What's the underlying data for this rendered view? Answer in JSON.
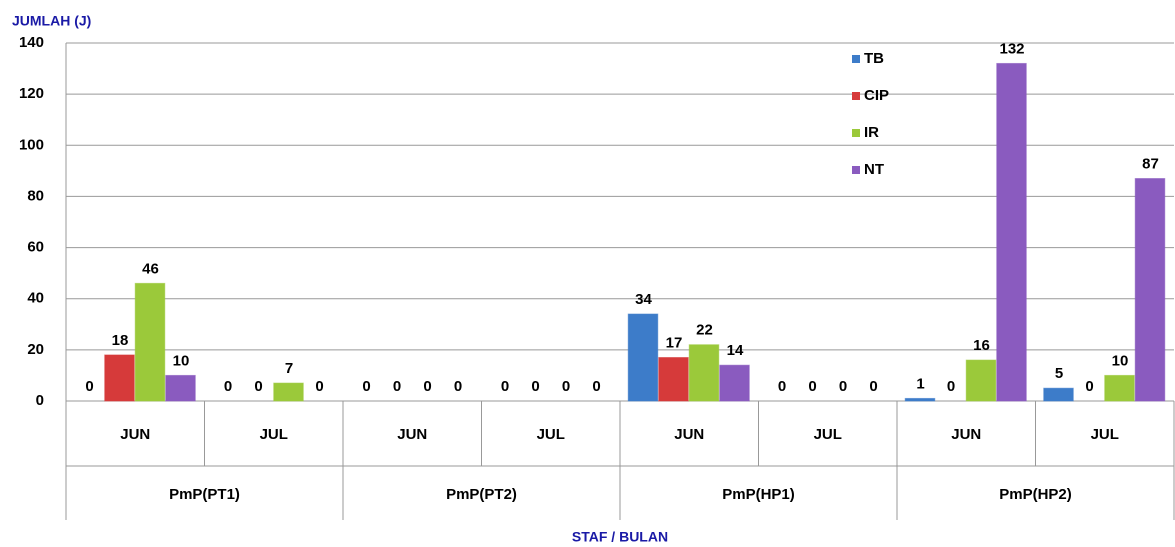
{
  "chart_data": {
    "type": "bar",
    "y_label": "JUMLAH (J)",
    "x_label": "STAF / BULAN",
    "categories": [
      "JUN",
      "JUL",
      "JUN",
      "JUL",
      "JUN",
      "JUL",
      "JUN",
      "JUL"
    ],
    "groups": [
      "PmP(PT1)",
      "PmP(PT2)",
      "PmP(HP1)",
      "PmP(HP2)"
    ],
    "series": [
      {
        "name": "TB",
        "color": "#3d7cc9",
        "values": [
          0,
          0,
          0,
          0,
          34,
          0,
          1,
          5
        ]
      },
      {
        "name": "CIP",
        "color": "#d63a3a",
        "values": [
          18,
          0,
          0,
          0,
          17,
          0,
          0,
          0
        ]
      },
      {
        "name": "IR",
        "color": "#9bc93a",
        "values": [
          46,
          7,
          0,
          0,
          22,
          0,
          16,
          10
        ]
      },
      {
        "name": "NT",
        "color": "#8a5bbf",
        "values": [
          10,
          0,
          0,
          0,
          14,
          0,
          132,
          87
        ]
      }
    ],
    "ylim": [
      0,
      140
    ],
    "yticks": [
      0,
      20,
      40,
      60,
      80,
      100,
      120,
      140
    ],
    "grid": true,
    "legend": "top-right"
  }
}
